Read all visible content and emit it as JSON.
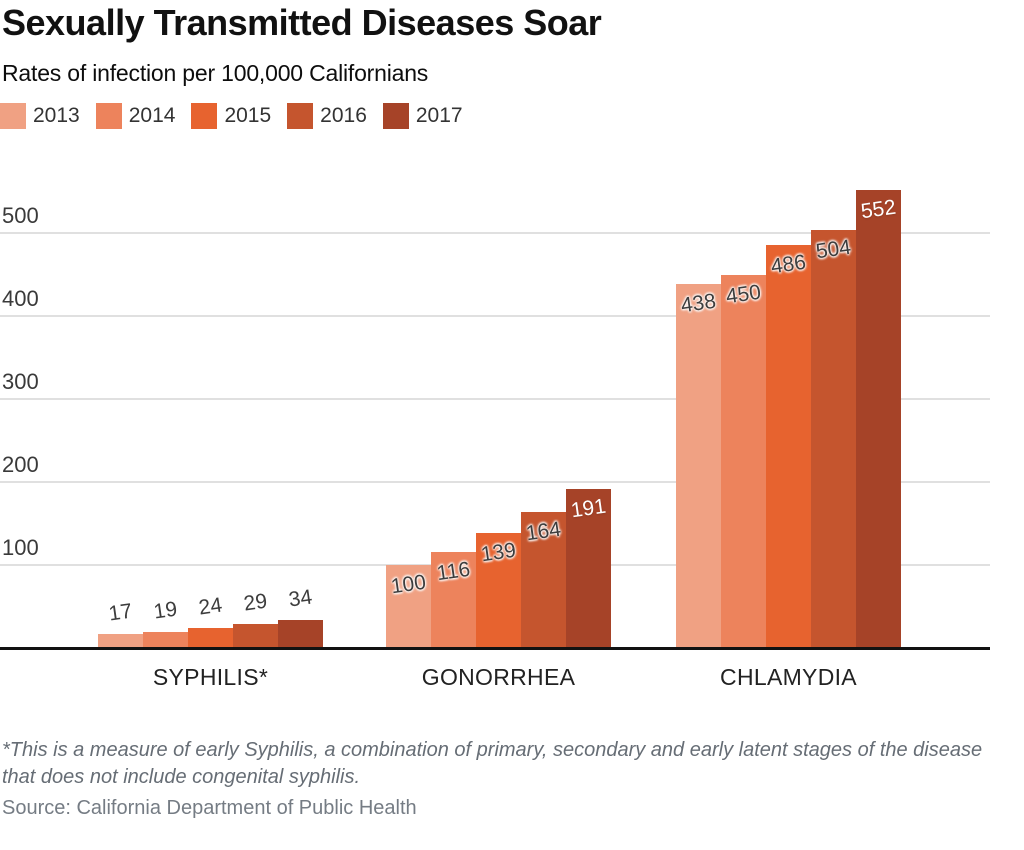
{
  "header": {
    "title": "Sexually Transmitted Diseases Soar",
    "subtitle": "Rates of infection per 100,000 Californians"
  },
  "notes": {
    "footnote": "*This is a measure of early Syphilis, a combination of primary, secondary and early latent stages of the disease that does not include congenital syphilis.",
    "source": "Source: California Department of Public Health"
  },
  "colors": {
    "grid": "#e0e0e0",
    "axis": "#121212",
    "label_dark": "#3d3d3d",
    "label_light": "#ffffff"
  },
  "chart_data": {
    "type": "bar",
    "title": "Sexually Transmitted Diseases Soar",
    "subtitle": "Rates of infection per 100,000 Californians",
    "categories": [
      "SYPHILIS*",
      "GONORRHEA",
      "CHLAMYDIA"
    ],
    "series": [
      {
        "name": "2013",
        "color": "#F0A183",
        "values": [
          17,
          100,
          438
        ]
      },
      {
        "name": "2014",
        "color": "#ED835C",
        "values": [
          19,
          116,
          450
        ]
      },
      {
        "name": "2015",
        "color": "#E7632F",
        "values": [
          24,
          139,
          486
        ]
      },
      {
        "name": "2016",
        "color": "#C5552E",
        "values": [
          29,
          164,
          504
        ]
      },
      {
        "name": "2017",
        "color": "#A64328",
        "values": [
          34,
          191,
          552
        ]
      }
    ],
    "y_axis": {
      "ticks": [
        100,
        200,
        300,
        400,
        500
      ],
      "ylim": [
        0,
        560
      ]
    },
    "grid": true,
    "legend_position": "top",
    "value_labels": true
  }
}
